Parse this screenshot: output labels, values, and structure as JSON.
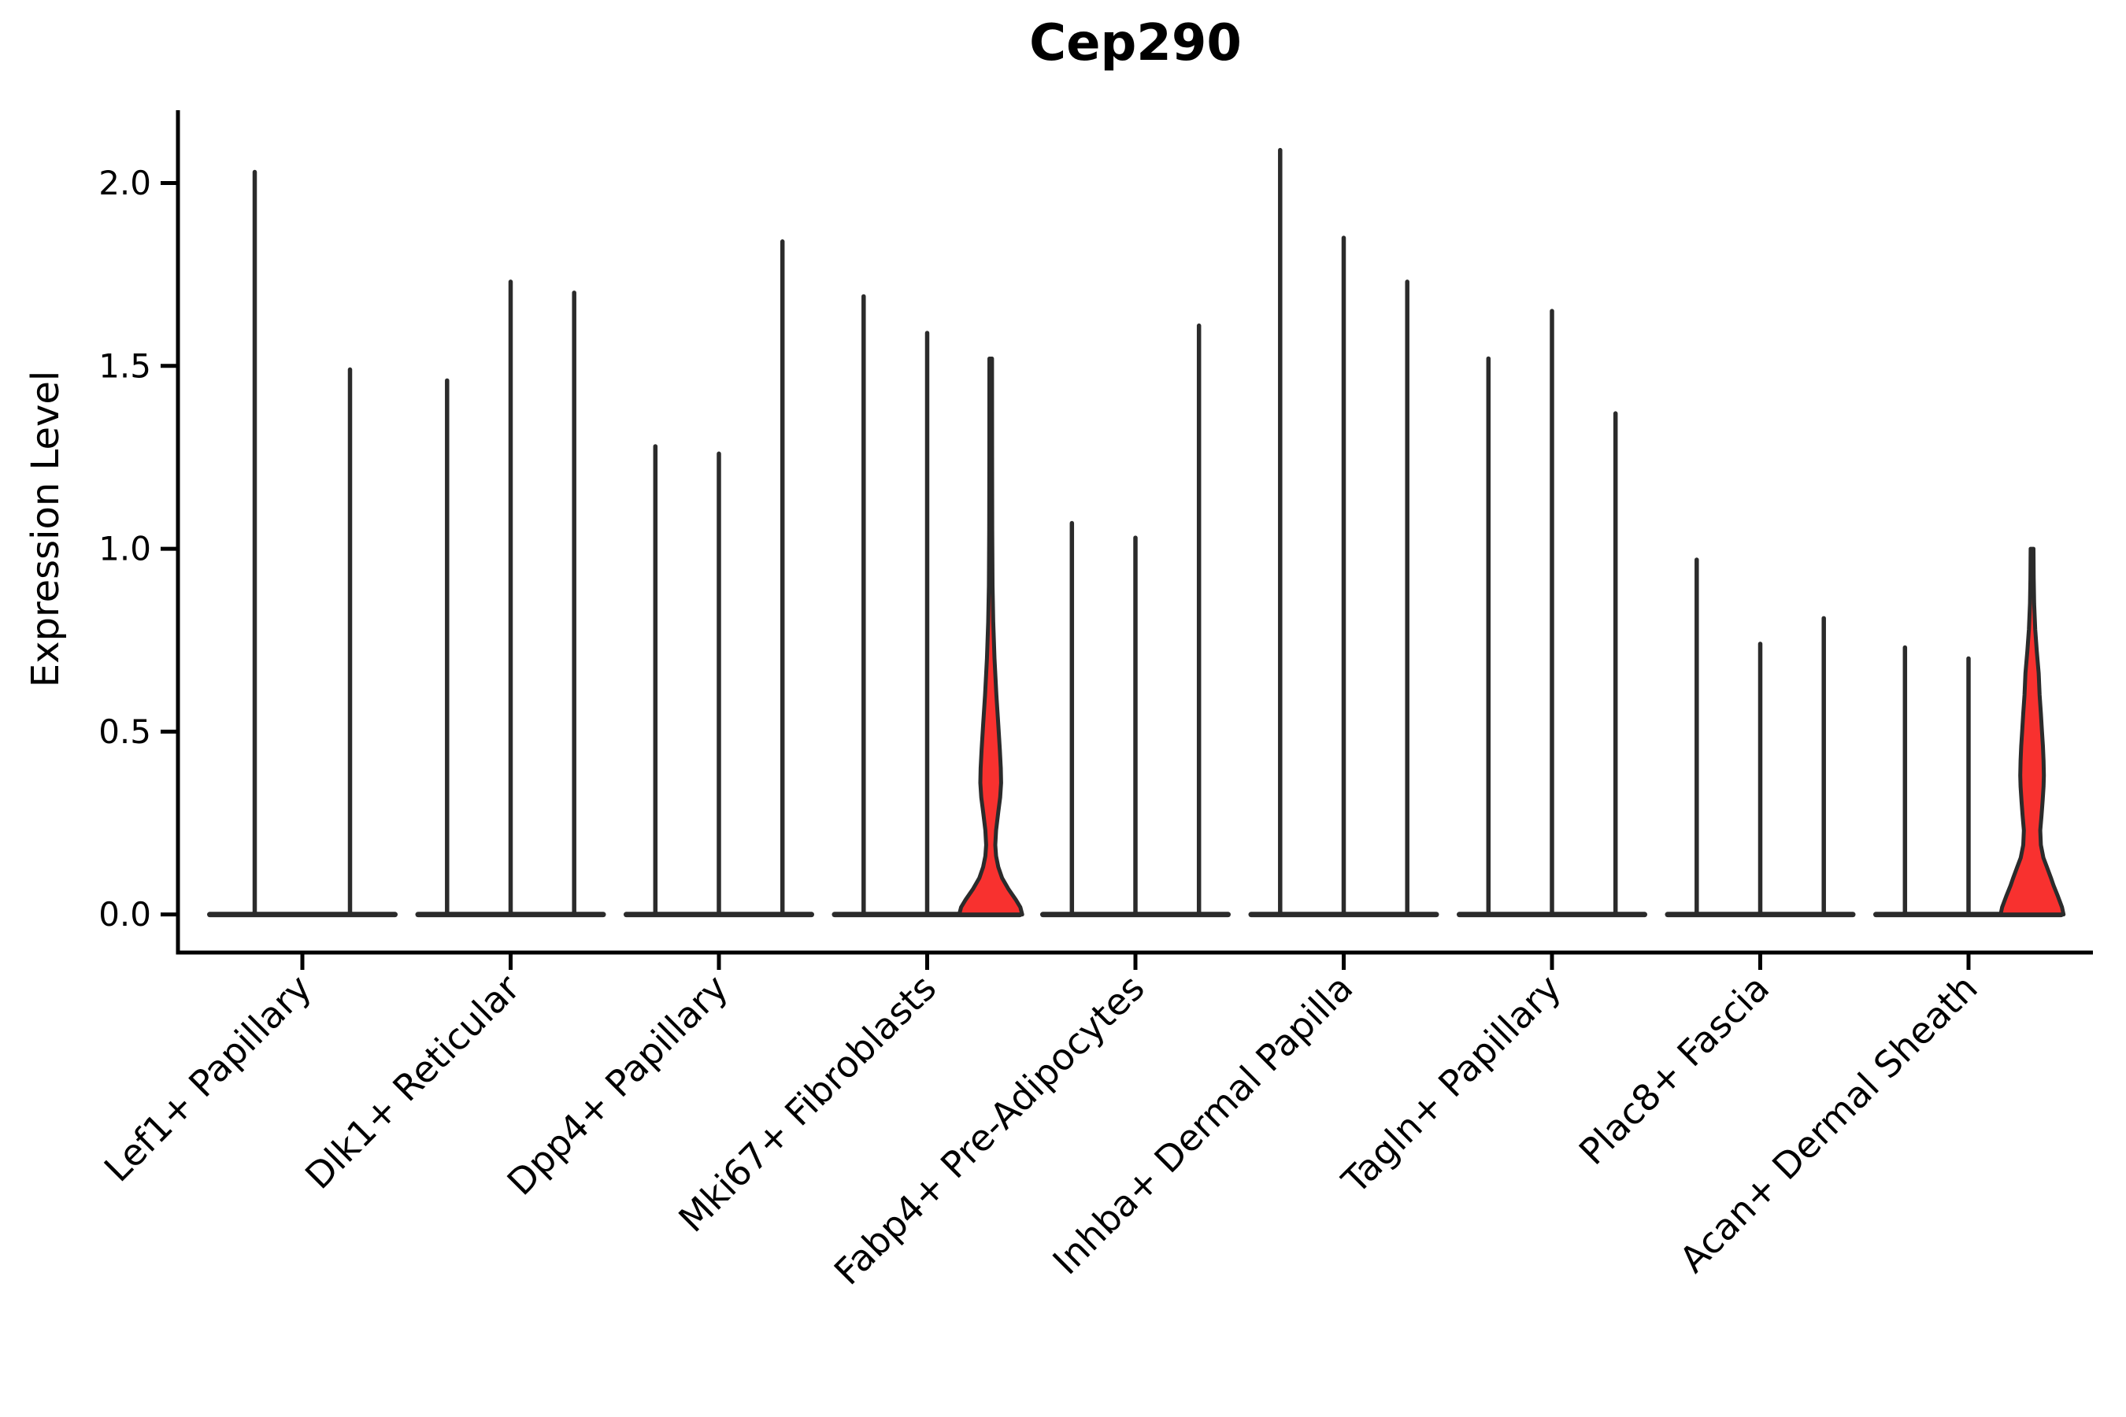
{
  "chart_data": {
    "type": "violin",
    "title": "Cep290",
    "ylabel": "Expression Level",
    "xlabel": "",
    "grid": false,
    "legend": "none",
    "ylim": [
      -0.104,
      2.199
    ],
    "yticks": [
      {
        "label": "0.0",
        "value": 0.0
      },
      {
        "label": "0.5",
        "value": 0.5
      },
      {
        "label": "1.0",
        "value": 1.0
      },
      {
        "label": "1.5",
        "value": 1.5
      },
      {
        "label": "2.0",
        "value": 2.0
      }
    ],
    "categories": [
      "Lef1+ Papillary",
      "Dlk1+ Reticular",
      "Dpp4+ Papillary",
      "Mki67+ Fibroblasts",
      "Fabp4+ Pre-Adipocytes",
      "Inhba+ Dermal Papilla",
      "Tagln+ Papillary",
      "Plac8+ Fascia",
      "Acan+ Dermal Sheath"
    ],
    "colors": {
      "spike": "#2b2b2b",
      "violin_fill": "#f8312f",
      "axis": "#000000",
      "text": "#000000"
    },
    "groups": [
      {
        "category": "Lef1+ Papillary",
        "violins": [
          {
            "max": 2.03
          },
          {
            "max": 1.49
          }
        ]
      },
      {
        "category": "Dlk1+ Reticular",
        "violins": [
          {
            "max": 1.46
          },
          {
            "max": 1.73
          },
          {
            "max": 1.7
          }
        ]
      },
      {
        "category": "Dpp4+ Papillary",
        "violins": [
          {
            "max": 1.28
          },
          {
            "max": 1.26
          },
          {
            "max": 1.84
          }
        ]
      },
      {
        "category": "Mki67+ Fibroblasts",
        "violins": [
          {
            "max": 1.69
          },
          {
            "max": 1.59
          },
          {
            "max": 1.52,
            "filled": true,
            "profile": [
              [
                0,
                1.0
              ],
              [
                0.02,
                0.94
              ],
              [
                0.04,
                0.8
              ],
              [
                0.07,
                0.56
              ],
              [
                0.1,
                0.36
              ],
              [
                0.13,
                0.24
              ],
              [
                0.16,
                0.17
              ],
              [
                0.19,
                0.145
              ],
              [
                0.23,
                0.17
              ],
              [
                0.28,
                0.24
              ],
              [
                0.32,
                0.3
              ],
              [
                0.36,
                0.33
              ],
              [
                0.4,
                0.32
              ],
              [
                0.45,
                0.29
              ],
              [
                0.52,
                0.24
              ],
              [
                0.6,
                0.18
              ],
              [
                0.7,
                0.12
              ],
              [
                0.8,
                0.08
              ],
              [
                0.9,
                0.058
              ],
              [
                1.05,
                0.048
              ],
              [
                1.25,
                0.044
              ],
              [
                1.52,
                0.042
              ]
            ]
          }
        ]
      },
      {
        "category": "Fabp4+ Pre-Adipocytes",
        "violins": [
          {
            "max": 1.07
          },
          {
            "max": 1.03
          },
          {
            "max": 1.61
          }
        ]
      },
      {
        "category": "Inhba+ Dermal Papilla",
        "violins": [
          {
            "max": 2.09
          },
          {
            "max": 1.85
          },
          {
            "max": 1.73
          }
        ]
      },
      {
        "category": "Tagln+ Papillary",
        "violins": [
          {
            "max": 1.52
          },
          {
            "max": 1.65
          },
          {
            "max": 1.37
          }
        ]
      },
      {
        "category": "Plac8+ Fascia",
        "violins": [
          {
            "max": 0.97
          },
          {
            "max": 0.74
          },
          {
            "max": 0.81
          }
        ]
      },
      {
        "category": "Acan+ Dermal Sheath",
        "violins": [
          {
            "max": 0.73
          },
          {
            "max": 0.7
          },
          {
            "max": 1.0,
            "filled": true,
            "profile": [
              [
                0,
                1.0
              ],
              [
                0.02,
                0.95
              ],
              [
                0.05,
                0.82
              ],
              [
                0.08,
                0.68
              ],
              [
                0.1,
                0.6
              ],
              [
                0.13,
                0.47
              ],
              [
                0.155,
                0.36
              ],
              [
                0.19,
                0.28
              ],
              [
                0.23,
                0.26
              ],
              [
                0.27,
                0.3
              ],
              [
                0.31,
                0.335
              ],
              [
                0.35,
                0.365
              ],
              [
                0.38,
                0.375
              ],
              [
                0.42,
                0.365
              ],
              [
                0.46,
                0.345
              ],
              [
                0.5,
                0.315
              ],
              [
                0.55,
                0.28
              ],
              [
                0.6,
                0.24
              ],
              [
                0.66,
                0.21
              ],
              [
                0.72,
                0.15
              ],
              [
                0.78,
                0.1
              ],
              [
                0.85,
                0.066
              ],
              [
                0.92,
                0.052
              ],
              [
                1.0,
                0.045
              ]
            ]
          }
        ]
      }
    ]
  }
}
